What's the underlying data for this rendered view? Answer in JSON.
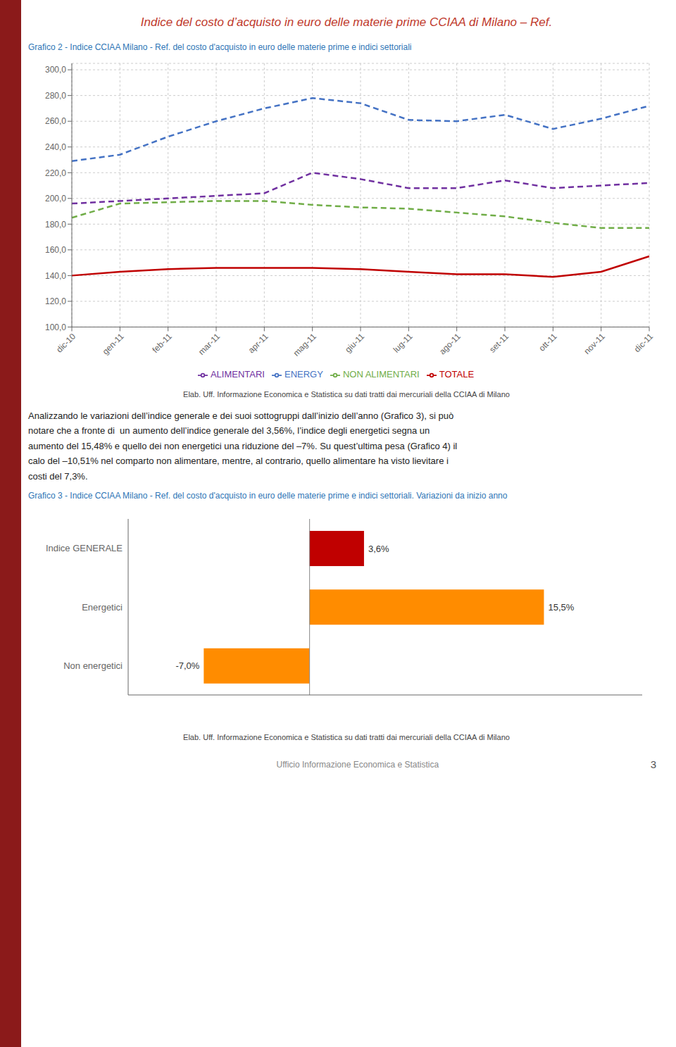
{
  "title": "Indice del costo d’acquisto in euro delle materie prime CCIAA di Milano – Ref.",
  "annotations": [
    "Analizzando le variazioni dell’indice generale e dei suoi sottogruppi dall’inizio dell’anno (Grafico 3), si può",
    "notare che a fronte di  un aumento dell’indice generale del 3,56%, l’indice degli energetici segna un",
    "aumento del 15,48% e quello dei non energetici una riduzione del –7%. Su quest’ultima pesa (Grafico 4) il",
    "calo del –10,51% nel comparto non alimentare, mentre, al contrario, quello alimentare ha visto lievitare i",
    "costi del 7,3%.",
    "Ufficio Informazione Economica e Statistica",
    "3"
  ],
  "chart_data": [
    {
      "type": "line",
      "title": "Grafico 2 - Indice CCIAA Milano - Ref. del costo d'acquisto in euro delle materie prime e indici settoriali",
      "annotations": [
        "Elab. Uff. Informazione Economica e Statistica su dati tratti dai mercuriali della CCIAA di Milano"
      ],
      "categories": [
        "dic-10",
        "gen-11",
        "feb-11",
        "mar-11",
        "apr-11",
        "mag-11",
        "giu-11",
        "lug-11",
        "ago-11",
        "set-11",
        "ott-11",
        "nov-11",
        "dic-11"
      ],
      "series": [
        {
          "name": "ENERGY",
          "color": "#4472C4",
          "line_style": "dashed",
          "values": [
            229,
            234,
            248,
            260,
            270,
            278,
            274,
            261,
            260,
            265,
            254,
            262,
            272
          ]
        },
        {
          "name": "NON ALIMENTARI",
          "color": "#70AD47",
          "line_style": "dashed",
          "values": [
            185,
            196,
            197,
            198,
            198,
            195,
            193,
            192,
            189,
            186,
            181,
            177,
            177
          ]
        },
        {
          "name": "ALIMENTARI",
          "color": "#7030A0",
          "line_style": "dashed",
          "values": [
            196,
            198,
            200,
            202,
            204,
            220,
            215,
            208,
            208,
            214,
            208,
            210,
            212
          ]
        },
        {
          "name": "TOTALE",
          "color": "#C00000",
          "line_style": "solid",
          "values": [
            140,
            143,
            145,
            146,
            146,
            146,
            145,
            143,
            141,
            141,
            139,
            143,
            155
          ]
        }
      ],
      "ylim": [
        100,
        305
      ],
      "yticks": [
        {
          "value": 100,
          "label": "100,0"
        },
        {
          "value": 120,
          "label": "120,0"
        },
        {
          "value": 140,
          "label": "140,0"
        },
        {
          "value": 160,
          "label": "160,0"
        },
        {
          "value": 180,
          "label": "180,0"
        },
        {
          "value": 200,
          "label": "200,0"
        },
        {
          "value": 220,
          "label": "220,0"
        },
        {
          "value": 240,
          "label": "240,0"
        },
        {
          "value": 260,
          "label": "260,0"
        },
        {
          "value": 280,
          "label": "280,0"
        },
        {
          "value": 300,
          "label": "300,0"
        }
      ],
      "grid": true,
      "legend": "bottom"
    },
    {
      "type": "bar",
      "orientation": "horizontal",
      "title": "Grafico 3 - Indice CCIAA Milano - Ref. del costo d'acquisto in euro delle materie prime e indici settoriali. Variazioni da inizio anno",
      "annotations": [
        "Elab. Uff. Informazione Economica e Statistica su dati tratti dai mercuriali della CCIAA di Milano"
      ],
      "categories": [
        "Indice GENERALE",
        "Energetici",
        "Non energetici"
      ],
      "values": [
        3.6,
        15.5,
        -7.0
      ],
      "value_labels": [
        "3,6%",
        "15,5%",
        "-7,0%"
      ],
      "colors": [
        "#C00000",
        "#FF8C00",
        "#FF8C00"
      ],
      "xlim": [
        -12,
        22
      ],
      "data_labels": true,
      "tick_labels": "y"
    }
  ]
}
